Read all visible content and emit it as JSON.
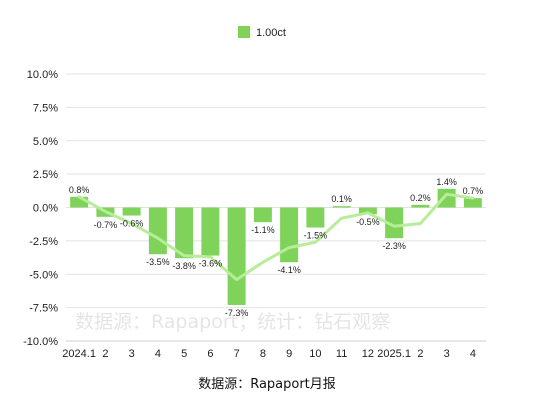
{
  "chart_data": {
    "type": "bar",
    "categories": [
      "2024.1",
      "2",
      "3",
      "4",
      "5",
      "6",
      "7",
      "8",
      "9",
      "10",
      "11",
      "12",
      "2025.1",
      "2",
      "3",
      "4"
    ],
    "series": [
      {
        "name": "1.00ct",
        "values": [
          0.8,
          -0.7,
          -0.6,
          -3.5,
          -3.8,
          -3.6,
          -7.3,
          -1.1,
          -4.1,
          -1.5,
          0.1,
          -0.5,
          -2.3,
          0.2,
          1.4,
          0.7
        ],
        "data_labels": [
          "0.8%",
          "-0.7%",
          "-0.6%",
          "-3.5%",
          "-3.8%",
          "-3.6%",
          "-7.3%",
          "-1.1%",
          "-4.1%",
          "-1.5%",
          "0.1%",
          "-0.5%",
          "-2.3%",
          "0.2%",
          "1.4%",
          "0.7%"
        ]
      }
    ],
    "trend_line": [
      0.8,
      -0.3,
      -1.2,
      -2.3,
      -3.6,
      -3.7,
      -5.4,
      -4.1,
      -3.0,
      -2.6,
      -0.8,
      -0.4,
      -1.4,
      -1.2,
      1.0,
      0.7
    ],
    "y_ticks": [
      "10.0%",
      "7.5%",
      "5.0%",
      "2.5%",
      "0.0%",
      "-2.5%",
      "-5.0%",
      "-7.5%",
      "-10.0%"
    ],
    "ylim": [
      -10,
      10
    ],
    "grid": true,
    "legend": "top-center",
    "watermark": "数据源：Rapaport；统计：钻石观察",
    "source_note": "数据源：Rapaport月报"
  },
  "colors": {
    "bar": "#7fd35a",
    "line": "#b7ec99",
    "grid": "#e2e2e2"
  }
}
